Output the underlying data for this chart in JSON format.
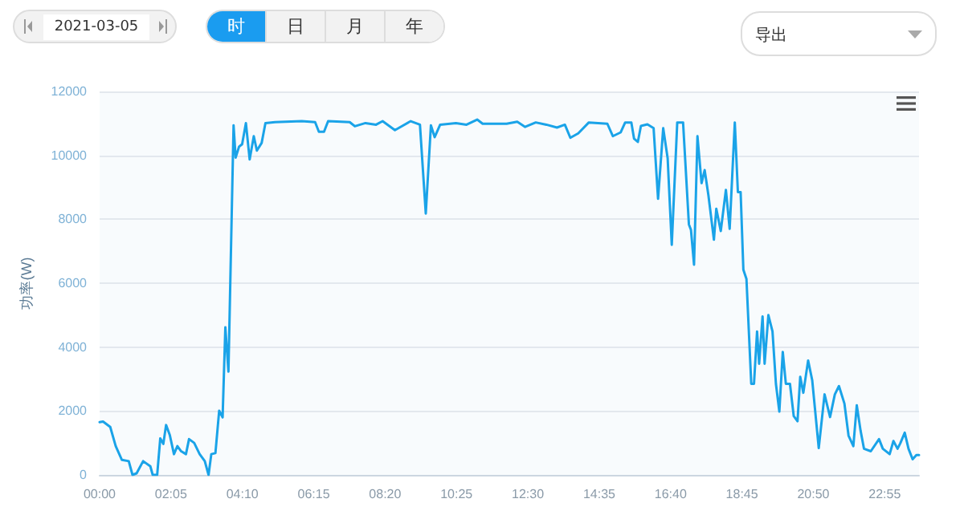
{
  "chart_data": {
    "type": "line",
    "ylabel": "功率(W)",
    "annotations": [
      "2021-03-05",
      "时",
      "日",
      "月",
      "年",
      "导出"
    ],
    "x": [
      0,
      0.1,
      0.31,
      0.47,
      0.65,
      0.85,
      0.96,
      1.08,
      1.27,
      1.48,
      1.55,
      1.68,
      1.77,
      1.86,
      1.94,
      2.05,
      2.17,
      2.27,
      2.38,
      2.52,
      2.61,
      2.76,
      2.92,
      3.07,
      3.18,
      3.26,
      3.38,
      3.49,
      3.59,
      3.67,
      3.76,
      3.91,
      3.97,
      4.07,
      4.16,
      4.27,
      4.38,
      4.5,
      4.59,
      4.73,
      4.84,
      5.12,
      5.9,
      6.29,
      6.4,
      6.55,
      6.67,
      7.3,
      7.45,
      7.76,
      8.07,
      8.26,
      8.62,
      9.08,
      9.35,
      9.52,
      9.67,
      9.78,
      9.94,
      10.4,
      10.71,
      11.02,
      11.18,
      11.88,
      12.19,
      12.42,
      12.73,
      13.04,
      13.35,
      13.58,
      13.74,
      13.97,
      14.28,
      14.82,
      14.98,
      15.21,
      15.34,
      15.52,
      15.6,
      15.71,
      15.8,
      15.99,
      16.17,
      16.3,
      16.45,
      16.58,
      16.7,
      16.86,
      17.03,
      17.2,
      17.26,
      17.35,
      17.45,
      17.57,
      17.66,
      17.77,
      17.93,
      18.0,
      18.13,
      18.28,
      18.39,
      18.54,
      18.63,
      18.71,
      18.79,
      18.88,
      19.02,
      19.1,
      19.19,
      19.25,
      19.35,
      19.41,
      19.52,
      19.64,
      19.74,
      19.84,
      19.94,
      20.03,
      20.15,
      20.26,
      20.37,
      20.45,
      20.54,
      20.68,
      20.8,
      20.99,
      21.16,
      21.32,
      21.46,
      21.58,
      21.74,
      21.86,
      22.0,
      22.1,
      22.21,
      22.31,
      22.51,
      22.75,
      22.86,
      23.06,
      23.17,
      23.29,
      23.37,
      23.5,
      23.61,
      23.73,
      23.84,
      23.9167
    ],
    "series": [
      {
        "color": "#1aa3e8",
        "values": [
          1650,
          1670,
          1500,
          900,
          470,
          430,
          0,
          50,
          430,
          270,
          0,
          0,
          1140,
          970,
          1560,
          1240,
          650,
          900,
          740,
          650,
          1120,
          1000,
          650,
          430,
          0,
          650,
          680,
          2010,
          1800,
          4620,
          3230,
          10940,
          9930,
          10270,
          10350,
          11010,
          9870,
          10600,
          10150,
          10390,
          11010,
          11040,
          11070,
          11040,
          10740,
          10740,
          11070,
          11040,
          10910,
          11010,
          10960,
          11070,
          10790,
          11070,
          10960,
          8180,
          10940,
          10570,
          10960,
          11010,
          10960,
          11120,
          10990,
          10990,
          11050,
          10890,
          11030,
          10960,
          10870,
          10960,
          10550,
          10690,
          11030,
          10990,
          10600,
          10720,
          11030,
          11030,
          10520,
          10420,
          10920,
          10970,
          10850,
          8640,
          10850,
          9910,
          7200,
          11030,
          11030,
          7840,
          7670,
          6580,
          10600,
          9130,
          9540,
          8750,
          7360,
          8330,
          7630,
          8920,
          7700,
          11030,
          8850,
          8850,
          6420,
          6130,
          2850,
          2850,
          4490,
          3480,
          4960,
          3480,
          5000,
          4490,
          2850,
          1980,
          3850,
          2850,
          2850,
          1840,
          1680,
          3070,
          2570,
          3580,
          2960,
          840,
          2520,
          1810,
          2520,
          2780,
          2230,
          1230,
          900,
          2180,
          1390,
          820,
          740,
          1120,
          820,
          650,
          1060,
          820,
          990,
          1320,
          820,
          490,
          620,
          620
        ]
      }
    ],
    "xlim": [
      0,
      23.9167
    ],
    "xticks": [
      {
        "value": 0,
        "label": "00:00"
      },
      {
        "value": 2.0833,
        "label": "02:05"
      },
      {
        "value": 4.1667,
        "label": "04:10"
      },
      {
        "value": 6.25,
        "label": "06:15"
      },
      {
        "value": 8.3333,
        "label": "08:20"
      },
      {
        "value": 10.4167,
        "label": "10:25"
      },
      {
        "value": 12.5,
        "label": "12:30"
      },
      {
        "value": 14.5833,
        "label": "14:35"
      },
      {
        "value": 16.6667,
        "label": "16:40"
      },
      {
        "value": 18.75,
        "label": "18:45"
      },
      {
        "value": 20.8333,
        "label": "20:50"
      },
      {
        "value": 22.9167,
        "label": "22:55"
      }
    ],
    "ylim": [
      0,
      12000
    ],
    "yticks": [
      0,
      2000,
      4000,
      6000,
      8000,
      10000,
      12000
    ],
    "grid": "y",
    "marker": "none",
    "line_style": "solid"
  }
}
